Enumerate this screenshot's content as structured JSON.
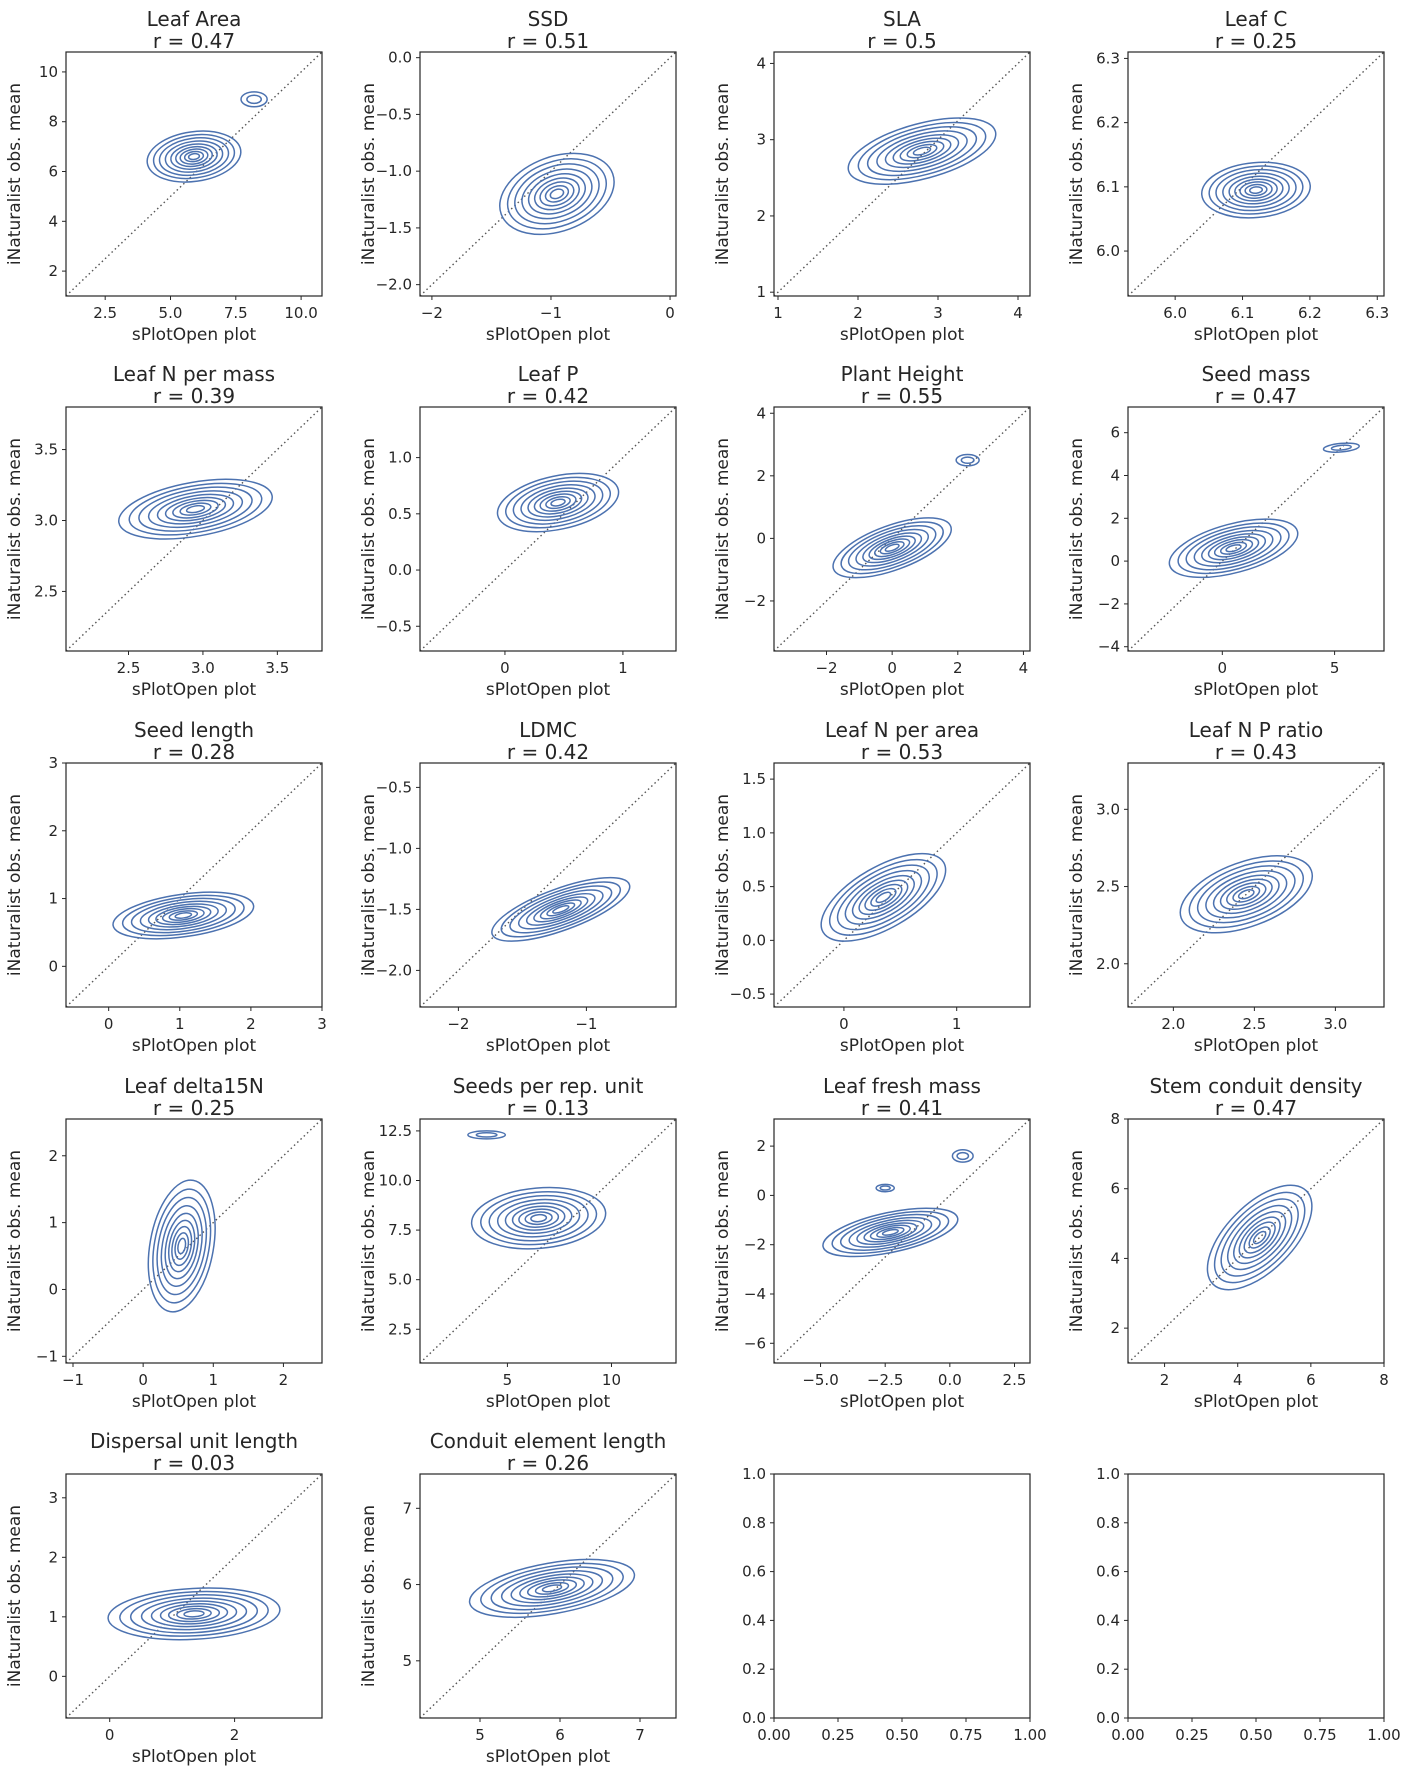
{
  "figure": {
    "xlabel": "sPlotOpen plot",
    "ylabel": "iNaturalist obs. mean",
    "diagonal_style": "dotted identity line y = x",
    "contour_color": "#4c72b0"
  },
  "chart_data": [
    {
      "type": "kde-contour",
      "trait": "Leaf Area",
      "r_label": "r = 0.47",
      "xlim": [
        1.0,
        10.8
      ],
      "ylim": [
        1.0,
        10.8
      ],
      "xticks": [
        2.5,
        5.0,
        7.5,
        10.0
      ],
      "xtick_labels": [
        "2.5",
        "5.0",
        "7.5",
        "10.0"
      ],
      "yticks": [
        2,
        4,
        6,
        8,
        10
      ],
      "ytick_labels": [
        "2",
        "4",
        "6",
        "8",
        "10"
      ],
      "blobs": [
        {
          "cx": 5.9,
          "cy": 6.6,
          "sx": 1.9,
          "sy": 1.05,
          "rot": 8
        },
        {
          "cx": 8.2,
          "cy": 8.9,
          "sx": 0.5,
          "sy": 0.3,
          "rot": 0
        }
      ]
    },
    {
      "type": "kde-contour",
      "trait": "SSD",
      "r_label": "r = 0.51",
      "xlim": [
        -2.1,
        0.05
      ],
      "ylim": [
        -2.1,
        0.05
      ],
      "xticks": [
        -2,
        -1,
        0
      ],
      "xtick_labels": [
        "−2",
        "−1",
        "0"
      ],
      "yticks": [
        -2.0,
        -1.5,
        -1.0,
        -0.5,
        0.0
      ],
      "ytick_labels": [
        "−2.0",
        "−1.5",
        "−1.0",
        "−0.5",
        "0.0"
      ],
      "blobs": [
        {
          "cx": -0.95,
          "cy": -1.2,
          "sx": 0.33,
          "sy": 0.55,
          "rot": -70
        }
      ]
    },
    {
      "type": "kde-contour",
      "trait": "SLA",
      "r_label": "r = 0.5",
      "xlim": [
        0.95,
        4.15
      ],
      "ylim": [
        0.95,
        4.15
      ],
      "xticks": [
        1,
        2,
        3,
        4
      ],
      "xtick_labels": [
        "1",
        "2",
        "3",
        "4"
      ],
      "yticks": [
        1,
        2,
        3,
        4
      ],
      "ytick_labels": [
        "1",
        "2",
        "3",
        "4"
      ],
      "blobs": [
        {
          "cx": 2.8,
          "cy": 2.85,
          "sx": 1.0,
          "sy": 0.38,
          "rot": 15
        }
      ]
    },
    {
      "type": "kde-contour",
      "trait": "Leaf C",
      "r_label": "r = 0.25",
      "xlim": [
        5.93,
        6.31
      ],
      "ylim": [
        5.93,
        6.31
      ],
      "xticks": [
        6.0,
        6.1,
        6.2,
        6.3
      ],
      "xtick_labels": [
        "6.0",
        "6.1",
        "6.2",
        "6.3"
      ],
      "yticks": [
        6.0,
        6.1,
        6.2,
        6.3
      ],
      "ytick_labels": [
        "6.0",
        "6.1",
        "6.2",
        "6.3"
      ],
      "blobs": [
        {
          "cx": 6.12,
          "cy": 6.095,
          "sx": 0.085,
          "sy": 0.045,
          "rot": 5
        }
      ]
    },
    {
      "type": "kde-contour",
      "trait": "Leaf N per mass",
      "r_label": "r = 0.39",
      "xlim": [
        2.08,
        3.8
      ],
      "ylim": [
        2.08,
        3.8
      ],
      "xticks": [
        2.5,
        3.0,
        3.5
      ],
      "xtick_labels": [
        "2.5",
        "3.0",
        "3.5"
      ],
      "yticks": [
        2.5,
        3.0,
        3.5
      ],
      "ytick_labels": [
        "2.5",
        "3.0",
        "3.5"
      ],
      "blobs": [
        {
          "cx": 2.95,
          "cy": 3.08,
          "sx": 0.55,
          "sy": 0.2,
          "rot": 10
        }
      ]
    },
    {
      "type": "kde-contour",
      "trait": "Leaf P",
      "r_label": "r = 0.42",
      "xlim": [
        -0.72,
        1.45
      ],
      "ylim": [
        -0.72,
        1.45
      ],
      "xticks": [
        0,
        1
      ],
      "xtick_labels": [
        "0",
        "1"
      ],
      "yticks": [
        -0.5,
        0.0,
        0.5,
        1.0
      ],
      "ytick_labels": [
        "−0.5",
        "0.0",
        "0.5",
        "1.0"
      ],
      "blobs": [
        {
          "cx": 0.45,
          "cy": 0.6,
          "sx": 0.55,
          "sy": 0.25,
          "rot": 12
        }
      ]
    },
    {
      "type": "kde-contour",
      "trait": "Plant Height",
      "r_label": "r = 0.55",
      "xlim": [
        -3.6,
        4.2
      ],
      "ylim": [
        -3.6,
        4.2
      ],
      "xticks": [
        -2,
        0,
        2,
        4
      ],
      "xtick_labels": [
        "−2",
        "0",
        "2",
        "4"
      ],
      "yticks": [
        -2,
        0,
        2,
        4
      ],
      "ytick_labels": [
        "−2",
        "0",
        "2",
        "4"
      ],
      "blobs": [
        {
          "cx": 0.0,
          "cy": -0.3,
          "sx": 2.0,
          "sy": 0.75,
          "rot": 20
        },
        {
          "cx": 2.3,
          "cy": 2.5,
          "sx": 0.35,
          "sy": 0.18,
          "rot": 0
        }
      ]
    },
    {
      "type": "kde-contour",
      "trait": "Seed mass",
      "r_label": "r = 0.47",
      "xlim": [
        -4.2,
        7.2
      ],
      "ylim": [
        -4.2,
        7.2
      ],
      "xticks": [
        0,
        5
      ],
      "xtick_labels": [
        "0",
        "5"
      ],
      "yticks": [
        -4,
        -2,
        0,
        2,
        4,
        6
      ],
      "ytick_labels": [
        "−4",
        "−2",
        "0",
        "2",
        "4",
        "6"
      ],
      "blobs": [
        {
          "cx": 0.5,
          "cy": 0.6,
          "sx": 3.1,
          "sy": 1.2,
          "rot": 15
        },
        {
          "cx": 5.3,
          "cy": 5.3,
          "sx": 0.8,
          "sy": 0.2,
          "rot": 5
        }
      ]
    },
    {
      "type": "kde-contour",
      "trait": "Seed length",
      "r_label": "r = 0.28",
      "xlim": [
        -0.6,
        3.0
      ],
      "ylim": [
        -0.6,
        3.0
      ],
      "xticks": [
        0,
        1,
        2,
        3
      ],
      "xtick_labels": [
        "0",
        "1",
        "2",
        "3"
      ],
      "yticks": [
        0,
        1,
        2,
        3
      ],
      "ytick_labels": [
        "0",
        "1",
        "2",
        "3"
      ],
      "blobs": [
        {
          "cx": 1.05,
          "cy": 0.75,
          "sx": 1.05,
          "sy": 0.33,
          "rot": 8
        }
      ]
    },
    {
      "type": "kde-contour",
      "trait": "LDMC",
      "r_label": "r = 0.42",
      "xlim": [
        -2.3,
        -0.3
      ],
      "ylim": [
        -2.3,
        -0.3
      ],
      "xticks": [
        -2,
        -1
      ],
      "xtick_labels": [
        "−2",
        "−1"
      ],
      "yticks": [
        -2.0,
        -1.5,
        -1.0,
        -0.5
      ],
      "ytick_labels": [
        "−2.0",
        "−1.5",
        "−1.0",
        "−0.5"
      ],
      "blobs": [
        {
          "cx": -1.2,
          "cy": -1.5,
          "sx": 0.6,
          "sy": 0.18,
          "rot": 20
        }
      ]
    },
    {
      "type": "kde-contour",
      "trait": "Leaf N per area",
      "r_label": "r = 0.53",
      "xlim": [
        -0.62,
        1.65
      ],
      "ylim": [
        -0.62,
        1.65
      ],
      "xticks": [
        0,
        1
      ],
      "xtick_labels": [
        "0",
        "1"
      ],
      "yticks": [
        -0.5,
        0.0,
        0.5,
        1.0,
        1.5
      ],
      "ytick_labels": [
        "−0.5",
        "0.0",
        "0.5",
        "1.0",
        "1.5"
      ],
      "blobs": [
        {
          "cx": 0.35,
          "cy": 0.4,
          "sx": 0.65,
          "sy": 0.3,
          "rot": 30
        }
      ]
    },
    {
      "type": "kde-contour",
      "trait": "Leaf N P ratio",
      "r_label": "r = 0.43",
      "xlim": [
        1.72,
        3.3
      ],
      "ylim": [
        1.72,
        3.3
      ],
      "xticks": [
        2.0,
        2.5,
        3.0
      ],
      "xtick_labels": [
        "2.0",
        "2.5",
        "3.0"
      ],
      "yticks": [
        2.0,
        2.5,
        3.0
      ],
      "ytick_labels": [
        "2.0",
        "2.5",
        "3.0"
      ],
      "blobs": [
        {
          "cx": 2.45,
          "cy": 2.45,
          "sx": 0.45,
          "sy": 0.22,
          "rot": 20
        }
      ]
    },
    {
      "type": "kde-contour",
      "trait": "Leaf delta15N",
      "r_label": "r = 0.25",
      "xlim": [
        -1.1,
        2.55
      ],
      "ylim": [
        -1.1,
        2.55
      ],
      "xticks": [
        -1,
        0,
        1,
        2
      ],
      "xtick_labels": [
        "−1",
        "0",
        "1",
        "2"
      ],
      "yticks": [
        -1,
        0,
        1,
        2
      ],
      "ytick_labels": [
        "−1",
        "0",
        "1",
        "2"
      ],
      "blobs": [
        {
          "cx": 0.55,
          "cy": 0.65,
          "sx": 1.0,
          "sy": 0.5,
          "rot": 80
        }
      ]
    },
    {
      "type": "kde-contour",
      "trait": "Seeds per rep. unit",
      "r_label": "r = 0.13",
      "xlim": [
        0.8,
        13.1
      ],
      "ylim": [
        0.8,
        13.1
      ],
      "xticks": [
        5,
        10
      ],
      "xtick_labels": [
        "5",
        "10"
      ],
      "yticks": [
        2.5,
        5.0,
        7.5,
        10.0,
        12.5
      ],
      "ytick_labels": [
        "2.5",
        "5.0",
        "7.5",
        "10.0",
        "12.5"
      ],
      "blobs": [
        {
          "cx": 6.5,
          "cy": 8.1,
          "sx": 3.4,
          "sy": 1.6,
          "rot": 5
        },
        {
          "cx": 4.0,
          "cy": 12.3,
          "sx": 0.9,
          "sy": 0.2,
          "rot": 0
        }
      ]
    },
    {
      "type": "kde-contour",
      "trait": "Leaf fresh mass",
      "r_label": "r = 0.41",
      "xlim": [
        -6.8,
        3.1
      ],
      "ylim": [
        -6.8,
        3.1
      ],
      "xticks": [
        -5.0,
        -2.5,
        0.0,
        2.5
      ],
      "xtick_labels": [
        "−5.0",
        "−2.5",
        "0.0",
        "2.5"
      ],
      "yticks": [
        -6,
        -4,
        -2,
        0,
        2
      ],
      "ytick_labels": [
        "−6",
        "−4",
        "−2",
        "0",
        "2"
      ],
      "blobs": [
        {
          "cx": -2.3,
          "cy": -1.5,
          "sx": 2.8,
          "sy": 0.85,
          "rot": 12
        },
        {
          "cx": 0.5,
          "cy": 1.6,
          "sx": 0.4,
          "sy": 0.25,
          "rot": 0
        },
        {
          "cx": -2.5,
          "cy": 0.3,
          "sx": 0.35,
          "sy": 0.15,
          "rot": 0
        }
      ]
    },
    {
      "type": "kde-contour",
      "trait": "Stem conduit density",
      "r_label": "r = 0.47",
      "xlim": [
        1.0,
        8.0
      ],
      "ylim": [
        1.0,
        8.0
      ],
      "xticks": [
        2,
        4,
        6,
        8
      ],
      "xtick_labels": [
        "2",
        "4",
        "6",
        "8"
      ],
      "yticks": [
        2,
        4,
        6,
        8
      ],
      "ytick_labels": [
        "2",
        "4",
        "6",
        "8"
      ],
      "blobs": [
        {
          "cx": 4.6,
          "cy": 4.6,
          "sx": 1.9,
          "sy": 1.0,
          "rot": 45
        }
      ]
    },
    {
      "type": "kde-contour",
      "trait": "Dispersal unit length",
      "r_label": "r = 0.03",
      "xlim": [
        -0.7,
        3.4
      ],
      "ylim": [
        -0.7,
        3.4
      ],
      "xticks": [
        0,
        2
      ],
      "xtick_labels": [
        "0",
        "2"
      ],
      "yticks": [
        0,
        1,
        2,
        3
      ],
      "ytick_labels": [
        "0",
        "1",
        "2",
        "3"
      ],
      "blobs": [
        {
          "cx": 1.35,
          "cy": 1.05,
          "sx": 1.45,
          "sy": 0.45,
          "rot": 3
        }
      ]
    },
    {
      "type": "kde-contour",
      "trait": "Conduit element length",
      "r_label": "r = 0.26",
      "xlim": [
        4.25,
        7.45
      ],
      "ylim": [
        4.25,
        7.45
      ],
      "xticks": [
        5,
        6,
        7
      ],
      "xtick_labels": [
        "5",
        "6",
        "7"
      ],
      "yticks": [
        5,
        6,
        7
      ],
      "ytick_labels": [
        "5",
        "6",
        "7"
      ],
      "blobs": [
        {
          "cx": 5.9,
          "cy": 5.95,
          "sx": 1.1,
          "sy": 0.35,
          "rot": 10
        }
      ]
    },
    {
      "type": "empty",
      "trait": "",
      "r_label": "",
      "xlim": [
        0,
        1
      ],
      "ylim": [
        0,
        1
      ],
      "xticks": [
        0,
        0.25,
        0.5,
        0.75,
        1.0
      ],
      "xtick_labels": [
        "0.00",
        "0.25",
        "0.50",
        "0.75",
        "1.00"
      ],
      "yticks": [
        0,
        0.2,
        0.4,
        0.6,
        0.8,
        1.0
      ],
      "ytick_labels": [
        "0.0",
        "0.2",
        "0.4",
        "0.6",
        "0.8",
        "1.0"
      ],
      "blobs": []
    },
    {
      "type": "empty",
      "trait": "",
      "r_label": "",
      "xlim": [
        0,
        1
      ],
      "ylim": [
        0,
        1
      ],
      "xticks": [
        0,
        0.25,
        0.5,
        0.75,
        1.0
      ],
      "xtick_labels": [
        "0.00",
        "0.25",
        "0.50",
        "0.75",
        "1.00"
      ],
      "yticks": [
        0,
        0.2,
        0.4,
        0.6,
        0.8,
        1.0
      ],
      "ytick_labels": [
        "0.0",
        "0.2",
        "0.4",
        "0.6",
        "0.8",
        "1.0"
      ],
      "blobs": []
    }
  ]
}
